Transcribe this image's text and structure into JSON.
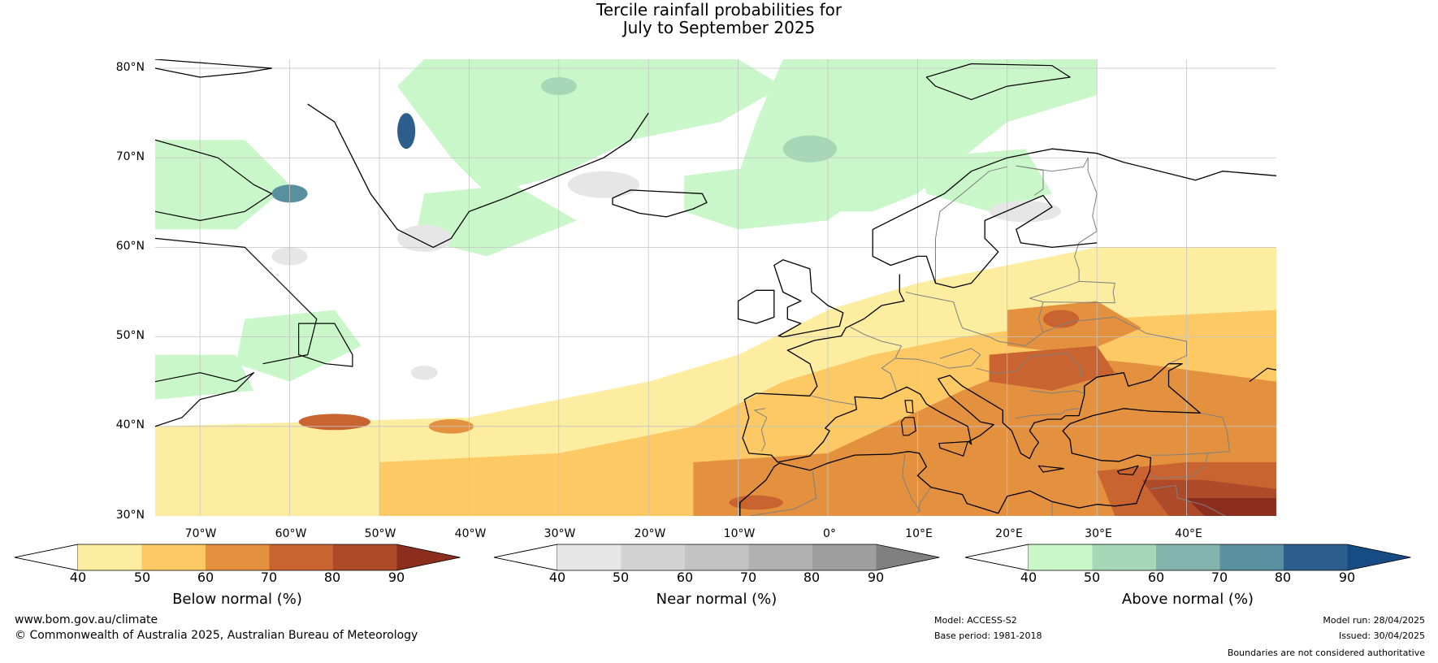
{
  "title": {
    "line1": "Tercile rainfall probabilities for",
    "line2": "July to September 2025"
  },
  "map": {
    "region": "North Atlantic and Europe",
    "lat_ticks": [
      "80°N",
      "70°N",
      "60°N",
      "50°N",
      "40°N",
      "30°N"
    ],
    "lon_ticks": [
      "70°W",
      "60°W",
      "50°W",
      "40°W",
      "30°W",
      "20°W",
      "10°W",
      "0°",
      "10°E",
      "20°E",
      "30°E",
      "40°E"
    ],
    "colors": {
      "below": [
        "#fdeda0",
        "#fdc964",
        "#e3913f",
        "#c9632f",
        "#ad4a2a",
        "#8b2e1d"
      ],
      "near": [
        "#e6e6e6",
        "#d3d3d3",
        "#c3c3c3",
        "#b1b1b1",
        "#9e9e9e",
        "#808080"
      ],
      "above": [
        "#c9f7c9",
        "#a6d8b8",
        "#82b4ad",
        "#5a8fa0",
        "#2e5e8e",
        "#164b83"
      ],
      "coast": "#000000",
      "borders": "#808080",
      "grid": "#c4c4c4"
    }
  },
  "colorbars": [
    {
      "id": "below",
      "label": "Below normal (%)",
      "ticks": [
        "40",
        "50",
        "60",
        "70",
        "80",
        "90"
      ],
      "colors": [
        "#fdeda0",
        "#fdc964",
        "#e3913f",
        "#c9632f",
        "#ad4a2a"
      ],
      "extend_color": "#8b2e1d"
    },
    {
      "id": "near",
      "label": "Near normal (%)",
      "ticks": [
        "40",
        "50",
        "60",
        "70",
        "80",
        "90"
      ],
      "colors": [
        "#e6e6e6",
        "#d3d3d3",
        "#c3c3c3",
        "#b1b1b1",
        "#9e9e9e"
      ],
      "extend_color": "#808080"
    },
    {
      "id": "above",
      "label": "Above normal (%)",
      "ticks": [
        "40",
        "50",
        "60",
        "70",
        "80",
        "90"
      ],
      "colors": [
        "#c9f7c9",
        "#a6d8b8",
        "#82b4ad",
        "#5a8fa0",
        "#2e5e8e"
      ],
      "extend_color": "#164b83"
    }
  ],
  "footer": {
    "url": "www.bom.gov.au/climate",
    "copyright": "© Commonwealth of Australia 2025, Australian Bureau of Meteorology",
    "model": "Model: ACCESS-S2",
    "base_period": "Base period: 1981-2018",
    "model_run": "Model run: 28/04/2025",
    "issued": "Issued: 30/04/2025",
    "boundaries": "Boundaries are not considered authoritative"
  }
}
